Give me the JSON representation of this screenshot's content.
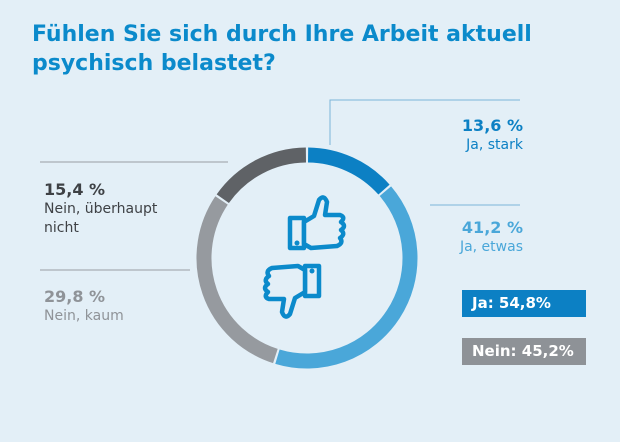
{
  "title": "Fühlen Sie sich durch Ihre Arbeit aktuell psychisch belastet?",
  "colors": {
    "background": "#e3eff7",
    "title": "#0b8acb",
    "ja_stark": "#0c80c4",
    "ja_etwas": "#4aa7d9",
    "nein_kaum": "#969a9f",
    "nein_ueberhaupt": "#5f6266",
    "icon": "#0b8acb",
    "leader": "#7bb4d8"
  },
  "chart_data": {
    "type": "pie",
    "variant": "donut",
    "title": "Fühlen Sie sich durch Ihre Arbeit aktuell psychisch belastet?",
    "unit": "%",
    "slices": [
      {
        "name": "Ja, stark",
        "value": 13.6,
        "label": "13,6 %"
      },
      {
        "name": "Ja, etwas",
        "value": 41.2,
        "label": "41,2 %"
      },
      {
        "name": "Nein, kaum",
        "value": 29.8,
        "label": "29,8 %"
      },
      {
        "name": "Nein, überhaupt nicht",
        "value": 15.4,
        "label": "15,4 %"
      }
    ],
    "totals": [
      {
        "name": "Ja",
        "value": 54.8,
        "label": "Ja: 54,8%"
      },
      {
        "name": "Nein",
        "value": 45.2,
        "label": "Nein: 45,2%"
      }
    ]
  },
  "labels": {
    "ja_stark": {
      "pct": "13,6 %",
      "cat": "Ja, stark"
    },
    "ja_etwas": {
      "pct": "41,2 %",
      "cat": "Ja, etwas"
    },
    "nein_ueberhaupt": {
      "pct": "15,4 %",
      "cat_line1": "Nein, überhaupt",
      "cat_line2": "nicht"
    },
    "nein_kaum": {
      "pct": "29,8 %",
      "cat": "Nein, kaum"
    }
  },
  "summary": {
    "ja": "Ja: 54,8%",
    "nein": "Nein: 45,2%"
  },
  "icons": [
    "thumbs-up-icon",
    "thumbs-down-icon"
  ]
}
